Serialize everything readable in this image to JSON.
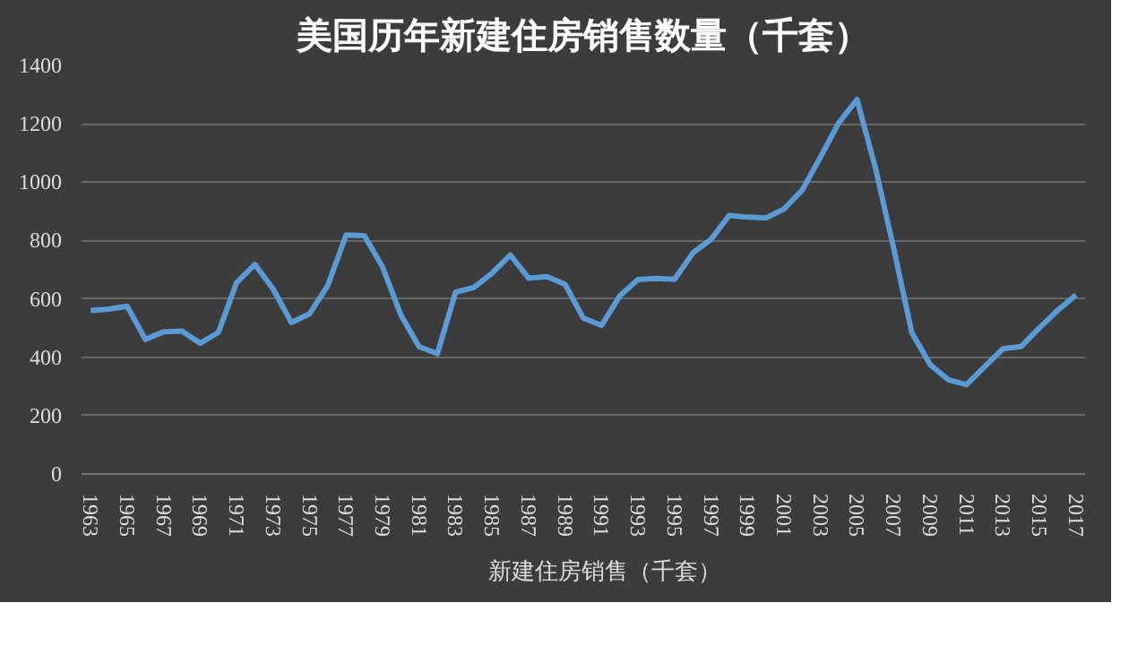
{
  "chart_data": {
    "type": "line",
    "title": "美国历年新建住房销售数量（千套）",
    "x": [
      1963,
      1964,
      1965,
      1966,
      1967,
      1968,
      1969,
      1970,
      1971,
      1972,
      1973,
      1974,
      1975,
      1976,
      1977,
      1978,
      1979,
      1980,
      1981,
      1982,
      1983,
      1984,
      1985,
      1986,
      1987,
      1988,
      1989,
      1990,
      1991,
      1992,
      1993,
      1994,
      1995,
      1996,
      1997,
      1998,
      1999,
      2000,
      2001,
      2002,
      2003,
      2004,
      2005,
      2006,
      2007,
      2008,
      2009,
      2010,
      2011,
      2012,
      2013,
      2014,
      2015,
      2016,
      2017
    ],
    "series": [
      {
        "name": "新建住房销售（千套）",
        "color": "#5b9bd5",
        "values": [
          560,
          565,
          575,
          461,
          487,
          490,
          448,
          485,
          656,
          718,
          634,
          519,
          549,
          646,
          819,
          817,
          709,
          545,
          436,
          412,
          623,
          639,
          688,
          750,
          671,
          676,
          650,
          534,
          509,
          610,
          666,
          670,
          667,
          757,
          804,
          886,
          880,
          877,
          908,
          973,
          1086,
          1203,
          1283,
          1051,
          776,
          485,
          375,
          323,
          306,
          368,
          429,
          437,
          501,
          561,
          613
        ]
      }
    ],
    "xlim": [
      1962.5,
      2017.5
    ],
    "xticks": [
      1963,
      1965,
      1967,
      1969,
      1971,
      1973,
      1975,
      1977,
      1979,
      1981,
      1983,
      1985,
      1987,
      1989,
      1991,
      1993,
      1995,
      1997,
      1999,
      2001,
      2003,
      2005,
      2007,
      2009,
      2011,
      2013,
      2015,
      2017
    ],
    "ylim": [
      0,
      1400
    ],
    "yticks": [
      0,
      200,
      400,
      600,
      800,
      1000,
      1200,
      1400
    ],
    "grid": "y",
    "legend": "bottom",
    "marker": "none",
    "line_style": "solid"
  }
}
